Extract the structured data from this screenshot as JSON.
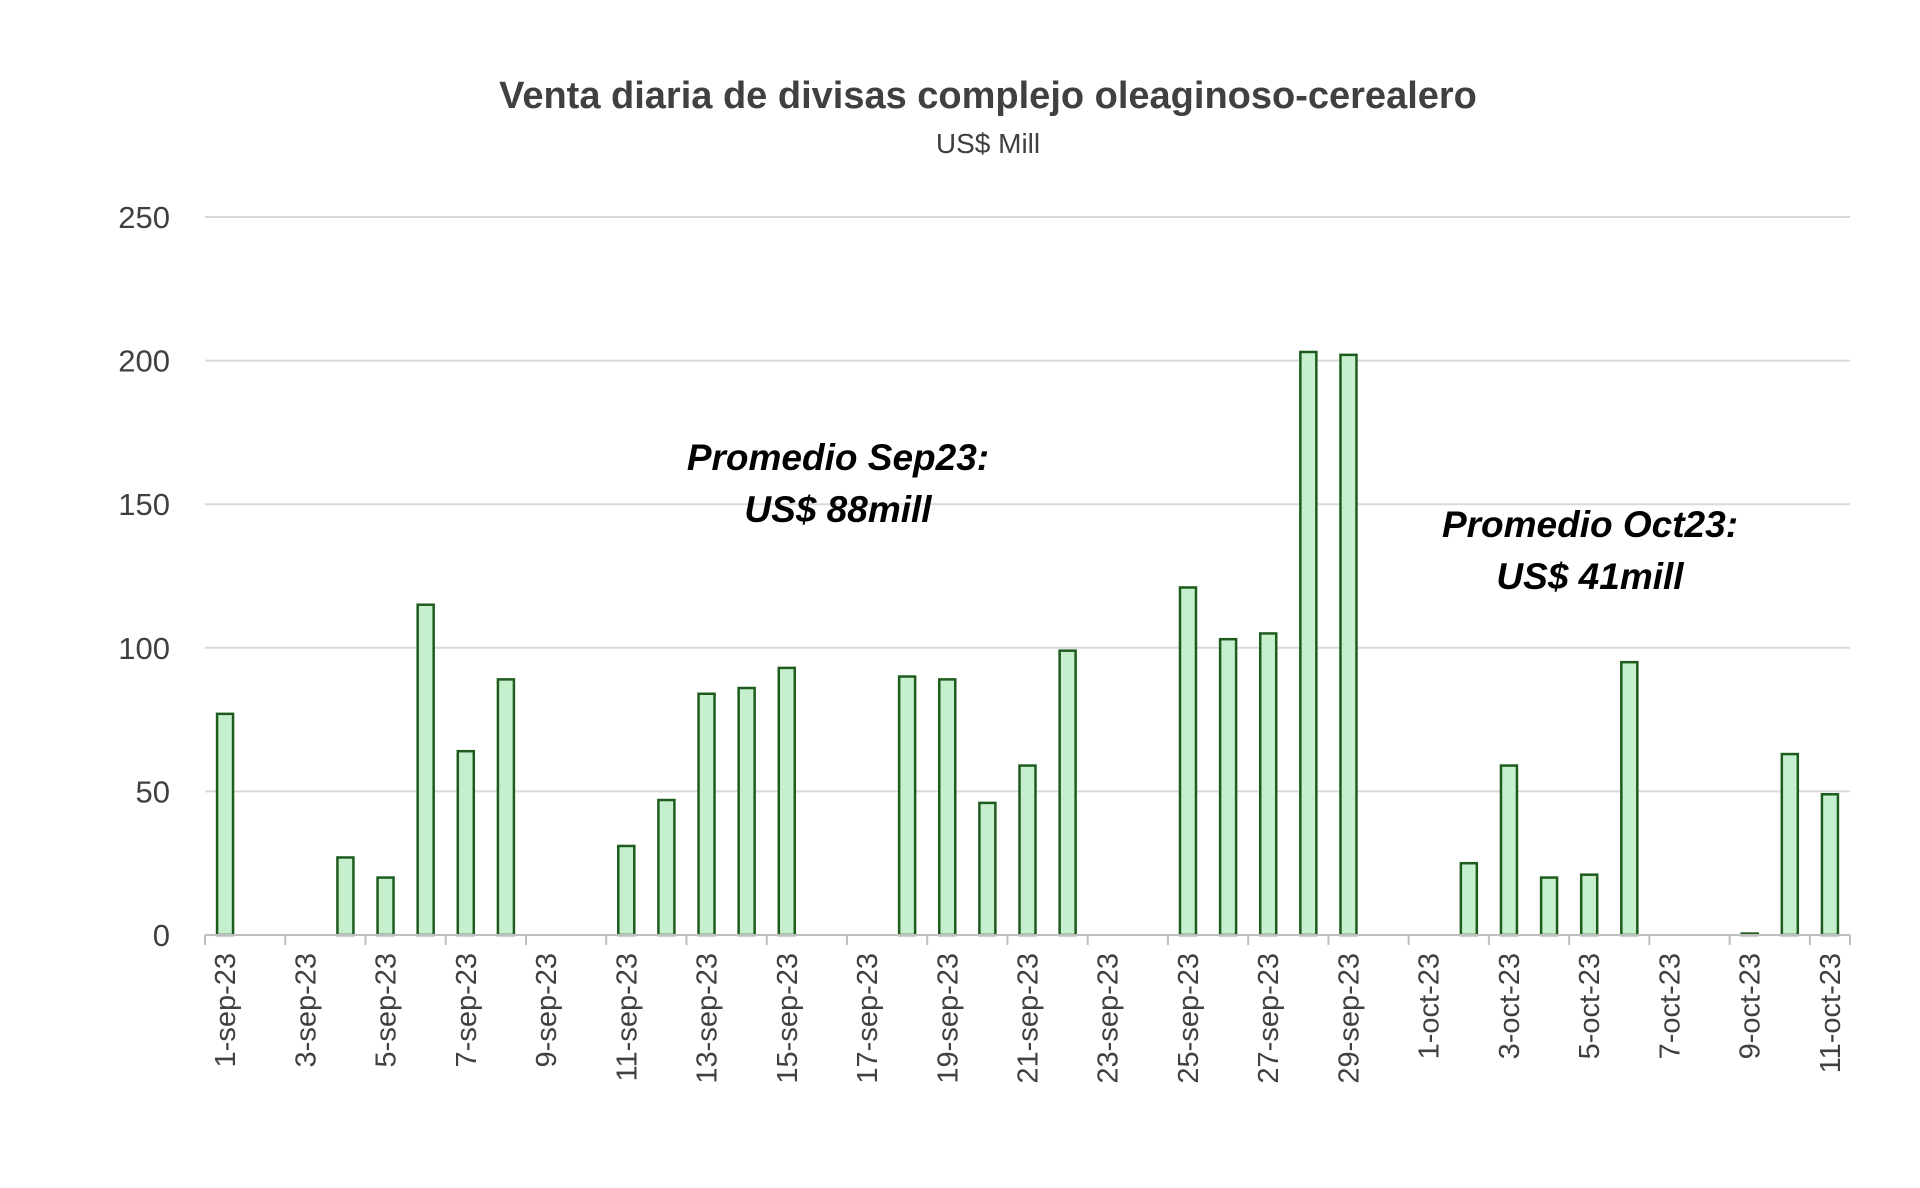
{
  "chart_data": {
    "type": "bar",
    "title": "Venta diaria de divisas complejo oleaginoso-cerealero",
    "subtitle": "US$ Mill",
    "xlabel": "",
    "ylabel": "",
    "ylim": [
      0,
      250
    ],
    "yticks": [
      0,
      50,
      100,
      150,
      200,
      250
    ],
    "grid": true,
    "legend": "none",
    "colors": {
      "fill": "#c6efce",
      "stroke": "#1e5c1e",
      "grid": "#d9d9d9",
      "text": "#404040"
    },
    "categories": [
      "1-sep-23",
      "2-sep-23",
      "3-sep-23",
      "4-sep-23",
      "5-sep-23",
      "6-sep-23",
      "7-sep-23",
      "8-sep-23",
      "9-sep-23",
      "10-sep-23",
      "11-sep-23",
      "12-sep-23",
      "13-sep-23",
      "14-sep-23",
      "15-sep-23",
      "16-sep-23",
      "17-sep-23",
      "18-sep-23",
      "19-sep-23",
      "20-sep-23",
      "21-sep-23",
      "22-sep-23",
      "23-sep-23",
      "24-sep-23",
      "25-sep-23",
      "26-sep-23",
      "27-sep-23",
      "28-sep-23",
      "29-sep-23",
      "30-sep-23",
      "1-oct-23",
      "2-oct-23",
      "3-oct-23",
      "4-oct-23",
      "5-oct-23",
      "6-oct-23",
      "7-oct-23",
      "8-oct-23",
      "9-oct-23",
      "10-oct-23",
      "11-oct-23"
    ],
    "tick_labels": [
      "1-sep-23",
      "3-sep-23",
      "5-sep-23",
      "7-sep-23",
      "9-sep-23",
      "11-sep-23",
      "13-sep-23",
      "15-sep-23",
      "17-sep-23",
      "19-sep-23",
      "21-sep-23",
      "23-sep-23",
      "25-sep-23",
      "27-sep-23",
      "29-sep-23",
      "1-oct-23",
      "3-oct-23",
      "5-oct-23",
      "7-oct-23",
      "9-oct-23",
      "11-oct-23"
    ],
    "values": [
      77,
      0,
      0,
      27,
      20,
      115,
      64,
      89,
      0,
      0,
      31,
      47,
      84,
      86,
      93,
      0,
      0,
      90,
      89,
      46,
      59,
      99,
      0,
      0,
      121,
      103,
      105,
      203,
      202,
      0,
      0,
      25,
      59,
      20,
      21,
      95,
      0,
      0,
      0.5,
      63,
      49
    ],
    "annotations": [
      {
        "lines": [
          "Promedio Sep23:",
          "US$ 88mill"
        ]
      },
      {
        "lines": [
          "Promedio Oct23:",
          "US$ 41mill"
        ]
      }
    ]
  }
}
